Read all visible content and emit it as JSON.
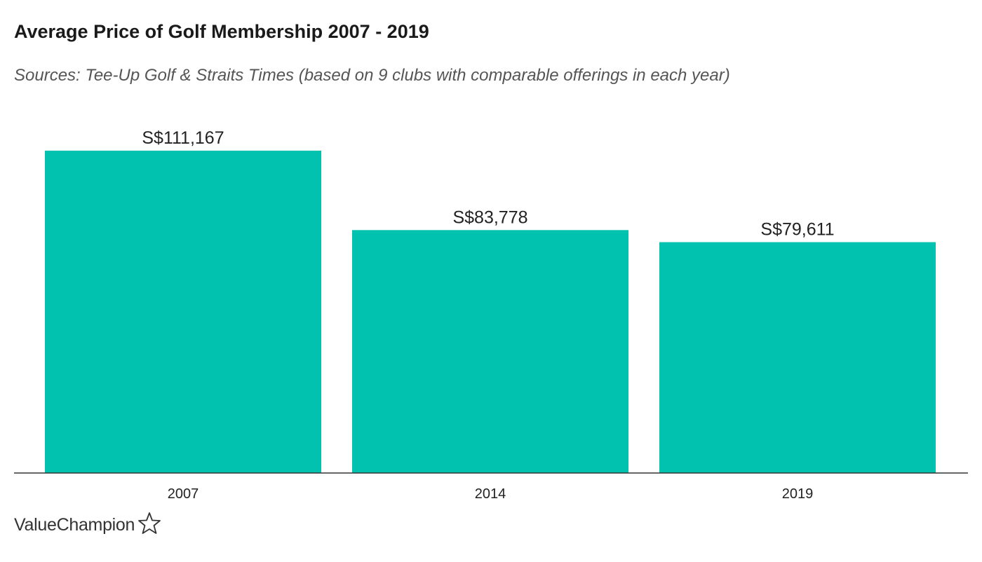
{
  "header": {
    "title": "Average Price of Golf Membership 2007 - 2019",
    "subtitle": "Sources: Tee-Up Golf & Straits Times (based on 9 clubs with comparable offerings in each year)"
  },
  "brand": {
    "name": "ValueChampion",
    "icon": "star-outline-icon"
  },
  "colors": {
    "bar": "#00c2ae",
    "axis": "#333333",
    "text": "#222222"
  },
  "chart_data": {
    "type": "bar",
    "title": "Average Price of Golf Membership 2007 - 2019",
    "subtitle": "Sources: Tee-Up Golf & Straits Times (based on 9 clubs with comparable offerings in each year)",
    "categories": [
      "2007",
      "2014",
      "2019"
    ],
    "values": [
      111167,
      83778,
      79611
    ],
    "data_labels": [
      "S$111,167",
      "S$83,778",
      "S$79,611"
    ],
    "xlabel": "",
    "ylabel": "",
    "ylim": [
      0,
      111167
    ],
    "grid": false,
    "legend": "none"
  }
}
